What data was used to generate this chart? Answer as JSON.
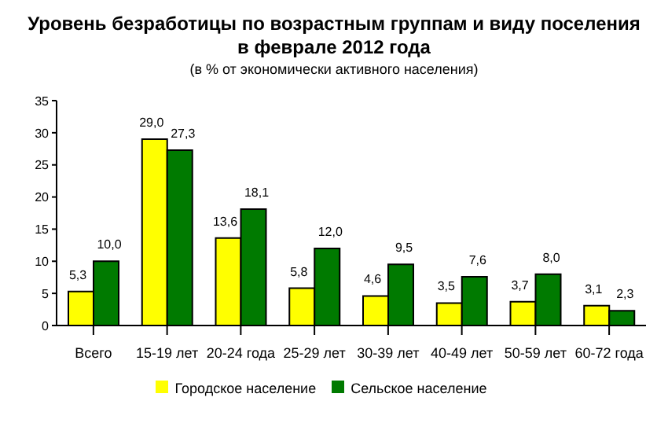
{
  "chart_data": {
    "type": "bar",
    "title": "Уровень безработицы по возрастным группам и виду поселения",
    "subtitle": "в феврале 2012 года",
    "annotations": [
      "(в % от экономически активного населения)"
    ],
    "categories": [
      "Всего",
      "15-19 лет",
      "20-24 года",
      "25-29 лет",
      "30-39 лет",
      "40-49 лет",
      "50-59 лет",
      "60-72 года"
    ],
    "series": [
      {
        "name": "Городское население",
        "color": "#ffff00",
        "values": [
          5.3,
          29.0,
          13.6,
          5.8,
          4.6,
          3.5,
          3.7,
          3.1
        ],
        "value_labels": [
          "5,3",
          "29,0",
          "13,6",
          "5,8",
          "4,6",
          "3,5",
          "3,7",
          "3,1"
        ]
      },
      {
        "name": "Сельское население",
        "color": "#007a00",
        "values": [
          10.0,
          27.3,
          18.1,
          12.0,
          9.5,
          7.6,
          8.0,
          2.3
        ],
        "value_labels": [
          "10,0",
          "27,3",
          "18,1",
          "12,0",
          "9,5",
          "7,6",
          "8,0",
          "2,3"
        ]
      }
    ],
    "ylim": [
      0,
      35
    ],
    "yticks": [
      0,
      5,
      10,
      15,
      20,
      25,
      30,
      35
    ],
    "legend": "bottom"
  }
}
